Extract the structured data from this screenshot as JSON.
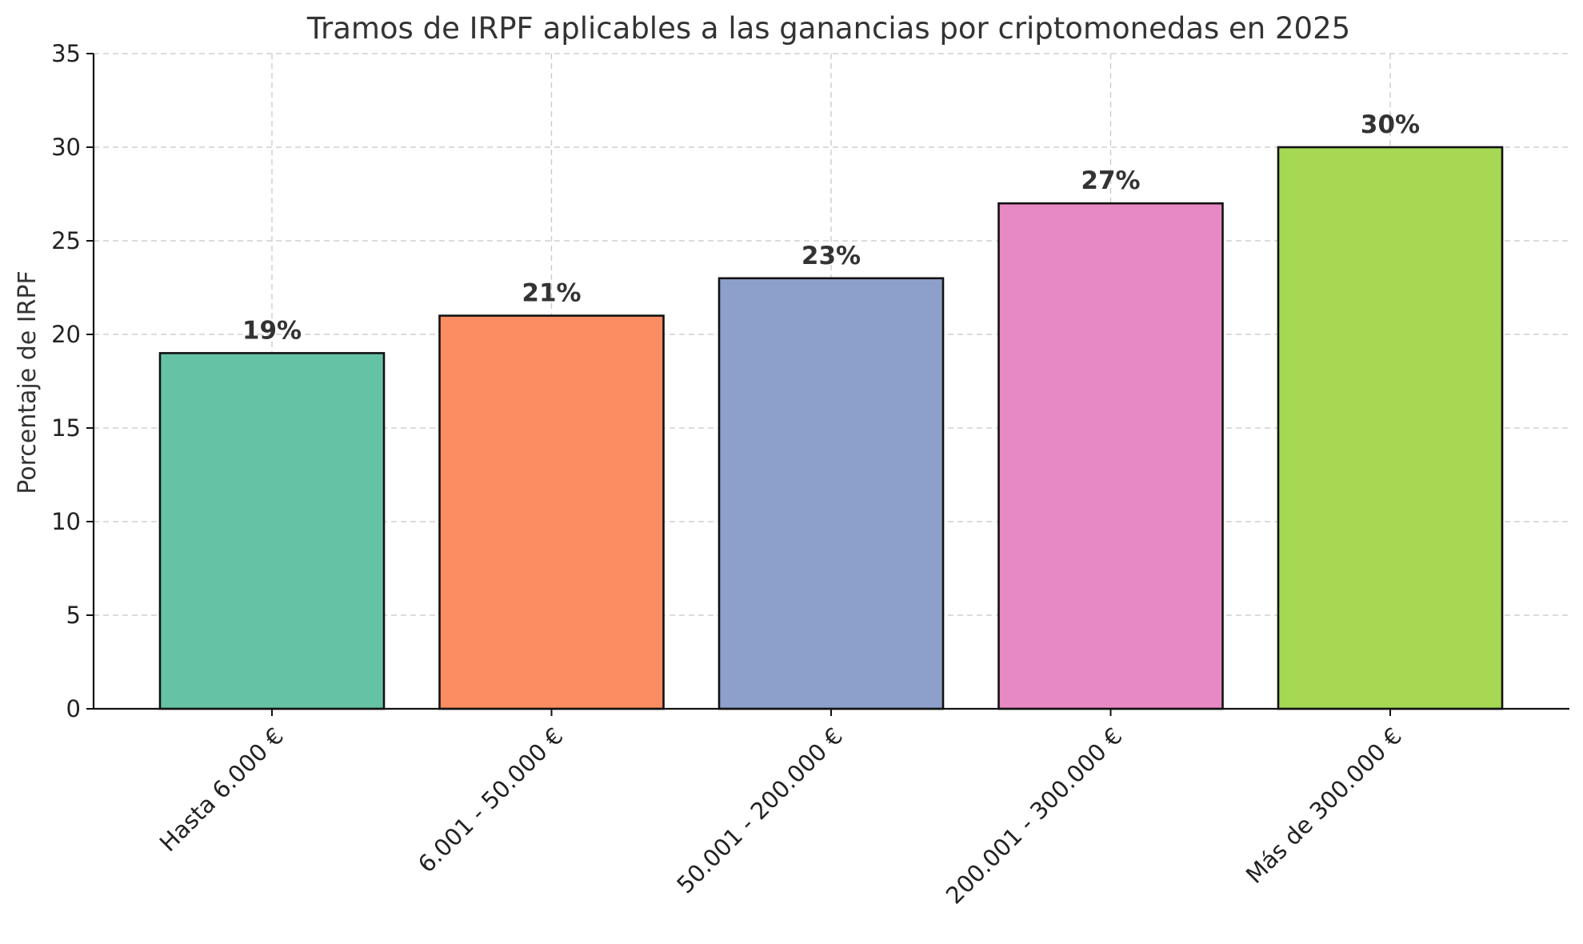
{
  "chart_data": {
    "type": "bar",
    "title": "Tramos de IRPF aplicables a las ganancias por criptomonedas en 2025",
    "xlabel": "",
    "ylabel": "Porcentaje de IRPF",
    "categories": [
      "Hasta 6.000 €",
      "6.001 - 50.000 €",
      "50.001 - 200.000 €",
      "200.001 - 300.000 €",
      "Más de 300.000 €"
    ],
    "values": [
      19,
      21,
      23,
      27,
      30
    ],
    "value_labels": [
      "19%",
      "21%",
      "23%",
      "27%",
      "30%"
    ],
    "colors": [
      "#66c2a5",
      "#fc8d62",
      "#8da0cb",
      "#e78ac3",
      "#a6d854"
    ],
    "ylim": [
      0,
      35
    ],
    "yticks": [
      0,
      5,
      10,
      15,
      20,
      25,
      30,
      35
    ],
    "grid": true,
    "legend": false
  }
}
